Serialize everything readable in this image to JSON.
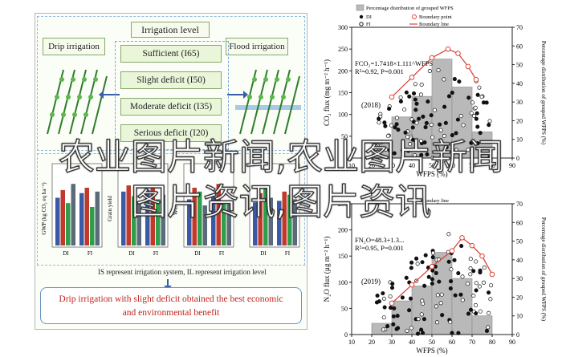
{
  "diagram": {
    "title": "Irrigation level",
    "drip_label": "Drip irrigation",
    "flood_label": "Flood irrigation",
    "levels": [
      "Sufficient (I65)",
      "Slight deficit (I50)",
      "Moderate deficit (I35)",
      "Serious deficit (I20)"
    ],
    "note": "IS represent irrigation system, IL represent irrigation level",
    "conclusion_line1": "Drip irrigation with slight deficit obtained the best economic",
    "conclusion_line2": "and environmental benefit",
    "bar_panels": [
      {
        "ylabel": "GWP (kg CO₂ eq ha⁻¹)",
        "groups": [
          "DI",
          "FI"
        ],
        "values": [
          0.62,
          0.72,
          0.55,
          0.8,
          0.68,
          0.75,
          0.5,
          0.7
        ]
      },
      {
        "ylabel": "Grain yield",
        "groups": [
          "DI",
          "FI"
        ],
        "values": [
          0.7,
          0.78,
          0.64,
          0.56,
          0.72,
          0.76,
          0.6,
          0.66
        ]
      },
      {
        "ylabel": "WUE",
        "groups": [
          "DI",
          "FI"
        ],
        "values": [
          0.6,
          0.75,
          0.7,
          0.52,
          0.64,
          0.8,
          0.58,
          0.54
        ]
      },
      {
        "ylabel": "",
        "groups": [
          "DI",
          "FI"
        ],
        "values": [
          0.56,
          0.68,
          0.74,
          0.62,
          0.58,
          0.7,
          0.66,
          0.6
        ]
      }
    ],
    "colors": {
      "sufficient": "#3b5aa6",
      "slight": "#c0392b",
      "moderate": "#2e9e4a",
      "serious": "#5b6b7a"
    }
  },
  "chart_data": [
    {
      "type": "scatter",
      "year": "(2018)",
      "legend": [
        "Percentage distribution of grouped WFPS",
        "DI",
        "FI",
        "Boundary point",
        "Boundary line"
      ],
      "equation": "FCO₂=1.7418×1.111^WFPS",
      "r2": "R²=0.92, P=0.001",
      "xlabel": "WFPS (%)",
      "ylabel": "CO₂ flux (mg m⁻² h⁻¹)",
      "y2label": "Percentage distribution of grouped WFPS (%)",
      "xticks": [
        10,
        20,
        30,
        40,
        50,
        60,
        70,
        80,
        90
      ],
      "yticks": [
        0,
        50,
        100,
        150,
        200,
        250,
        300
      ],
      "y2ticks": [
        0,
        10,
        20,
        30,
        40,
        50,
        60,
        70
      ],
      "histogram": [
        {
          "x": 25,
          "pct": 8
        },
        {
          "x": 35,
          "pct": 22
        },
        {
          "x": 45,
          "pct": 33
        },
        {
          "x": 55,
          "pct": 53
        },
        {
          "x": 65,
          "pct": 38
        },
        {
          "x": 75,
          "pct": 14
        }
      ],
      "boundary_points": [
        [
          30,
          140
        ],
        [
          40,
          185
        ],
        [
          50,
          230
        ],
        [
          58,
          250
        ],
        [
          63,
          240
        ],
        [
          68,
          210
        ],
        [
          72,
          180
        ]
      ]
    },
    {
      "type": "scatter",
      "year": "(2019)",
      "legend": [
        "Boundary line"
      ],
      "equation": "FN₂O=48.3+1.3...",
      "r2": "R²=0.95, P=0.001",
      "xlabel": "WFPS (%)",
      "ylabel": "N₂O flux (µg m⁻² h⁻¹)",
      "y2label": "Percentage distribution of grouped WFPS (%)",
      "xticks": [
        10,
        20,
        30,
        40,
        50,
        60,
        70,
        80,
        90
      ],
      "yticks": [
        0,
        50,
        100,
        150,
        200,
        250
      ],
      "y2ticks": [
        0,
        10,
        20,
        30,
        40,
        50,
        60,
        70
      ],
      "histogram": [
        {
          "x": 25,
          "pct": 6
        },
        {
          "x": 35,
          "pct": 18
        },
        {
          "x": 45,
          "pct": 26
        },
        {
          "x": 55,
          "pct": 44
        },
        {
          "x": 65,
          "pct": 30
        },
        {
          "x": 75,
          "pct": 10
        }
      ],
      "boundary_points": [
        [
          30,
          60
        ],
        [
          40,
          95
        ],
        [
          50,
          130
        ],
        [
          60,
          160
        ],
        [
          65,
          185
        ],
        [
          70,
          170
        ],
        [
          75,
          150
        ],
        [
          80,
          115
        ]
      ]
    }
  ],
  "watermark_line1": "农业图片新闻,农业图片新闻",
  "watermark_line2": "图片资讯,图片资讯"
}
